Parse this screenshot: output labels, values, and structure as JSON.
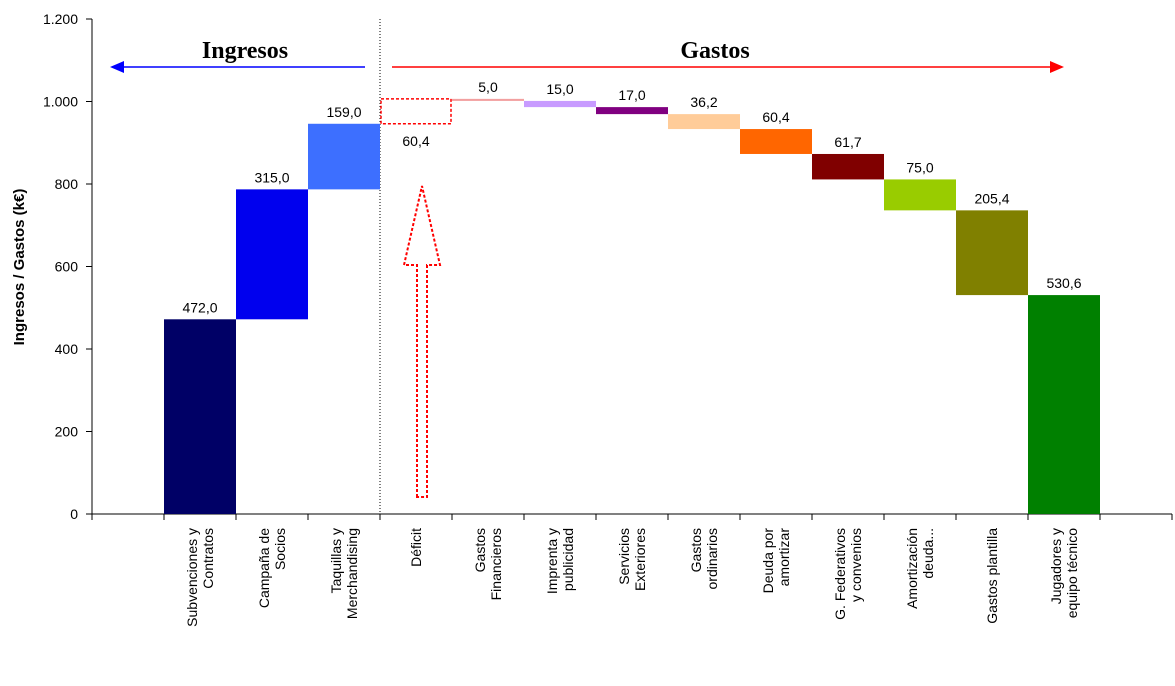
{
  "chart_data": {
    "type": "waterfall",
    "y_label": "Ingresos / Gastos (k€)",
    "categories": [
      "Subvenciones y\nContratos",
      "Campaña de\nSocios",
      "Taquillas y\nMerchandising",
      "Déficit",
      "Gastos\nFinancieros",
      "Imprenta y\npublicidad",
      "Servicios\nExteriores",
      "Gastos\nordinarios",
      "Deuda por\namortizar",
      "G. Federativos\ny convenios",
      "Amortización\ndeuda...",
      "Gastos plantilla",
      "Jugadores y\nequipo técnico"
    ],
    "values": [
      472.0,
      315.0,
      159.0,
      60.4,
      5.0,
      15.0,
      17.0,
      36.2,
      60.4,
      61.7,
      75.0,
      205.4,
      530.6
    ],
    "value_labels": [
      "472,0",
      "315,0",
      "159,0",
      "60,4",
      "5,0",
      "15,0",
      "17,0",
      "36,2",
      "60,4",
      "61,7",
      "75,0",
      "205,4",
      "530,6"
    ],
    "kinds": [
      "income",
      "income",
      "income",
      "deficit",
      "expense",
      "expense",
      "expense",
      "expense",
      "expense",
      "expense",
      "expense",
      "expense",
      "expense"
    ],
    "colors": [
      "#000066",
      "#0000ee",
      "#3d6fff",
      "#ff0000",
      "#f2a0a0",
      "#c89bff",
      "#800080",
      "#ffcc99",
      "#ff6600",
      "#800000",
      "#99cc00",
      "#808000",
      "#008000"
    ],
    "annotations": [
      {
        "text": "Ingresos",
        "color": "#0000ff"
      },
      {
        "text": "Gastos",
        "color": "#ff0000"
      }
    ],
    "ylim": [
      0,
      1200
    ],
    "yticks": [
      0,
      200,
      400,
      600,
      800,
      {
        "value": 1000,
        "label": "1.000"
      },
      {
        "value": 1200,
        "label": "1.200"
      }
    ],
    "grid": false
  }
}
